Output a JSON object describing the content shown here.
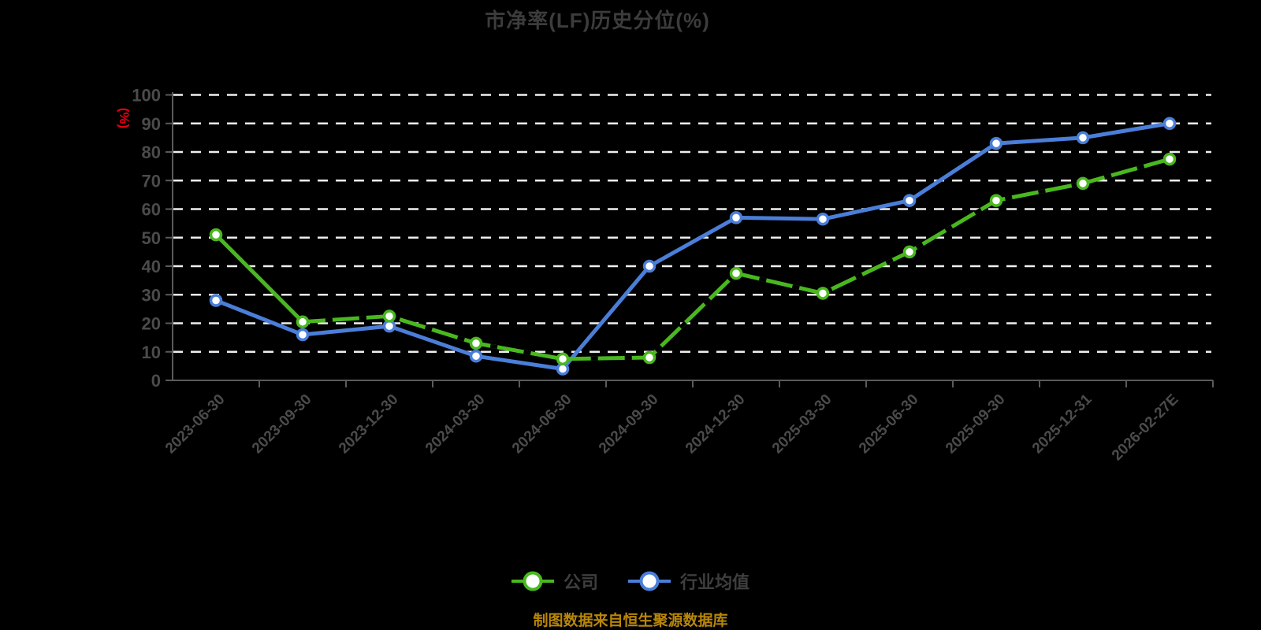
{
  "title": "市净率(LF)历史分位(%)",
  "y_axis": {
    "unit_label": "(%)",
    "unit_color": "#e60012"
  },
  "footer": {
    "note": "制图数据来自恒生聚源数据库"
  },
  "legend": {
    "items": [
      {
        "label": "公司",
        "color": "#49b81f"
      },
      {
        "label": "行业均值",
        "color": "#4a7ed8"
      }
    ]
  },
  "chart_data": {
    "type": "line",
    "title": "市净率(LF)历史分位(%)",
    "ylabel": "(%)",
    "categories": [
      "2023-06-30",
      "2023-09-30",
      "2023-12-30",
      "2024-03-30",
      "2024-06-30",
      "2024-09-30",
      "2024-12-30",
      "2025-03-30",
      "2025-06-30",
      "2025-09-30",
      "2025-12-31",
      "2026-02-27E"
    ],
    "series": [
      {
        "name": "公司",
        "color": "#49b81f",
        "values": [
          51,
          20.5,
          22.5,
          13,
          7.5,
          8,
          37.5,
          30.5,
          45,
          63,
          69,
          77.5
        ]
      },
      {
        "name": "行业均值",
        "color": "#4a7ed8",
        "values": [
          28,
          16,
          19,
          8.5,
          4,
          40,
          57,
          56.5,
          63,
          83,
          85,
          90
        ]
      }
    ],
    "ylim": [
      0,
      100
    ],
    "y_tick_step": 10,
    "grid": "horizontal-dashed",
    "gridline_color": "#efefef",
    "axis_color": "#5a5a5a",
    "tick_label_color": "#4b4b4b",
    "marker_fill": "#ffffff",
    "legend_position": "bottom"
  }
}
